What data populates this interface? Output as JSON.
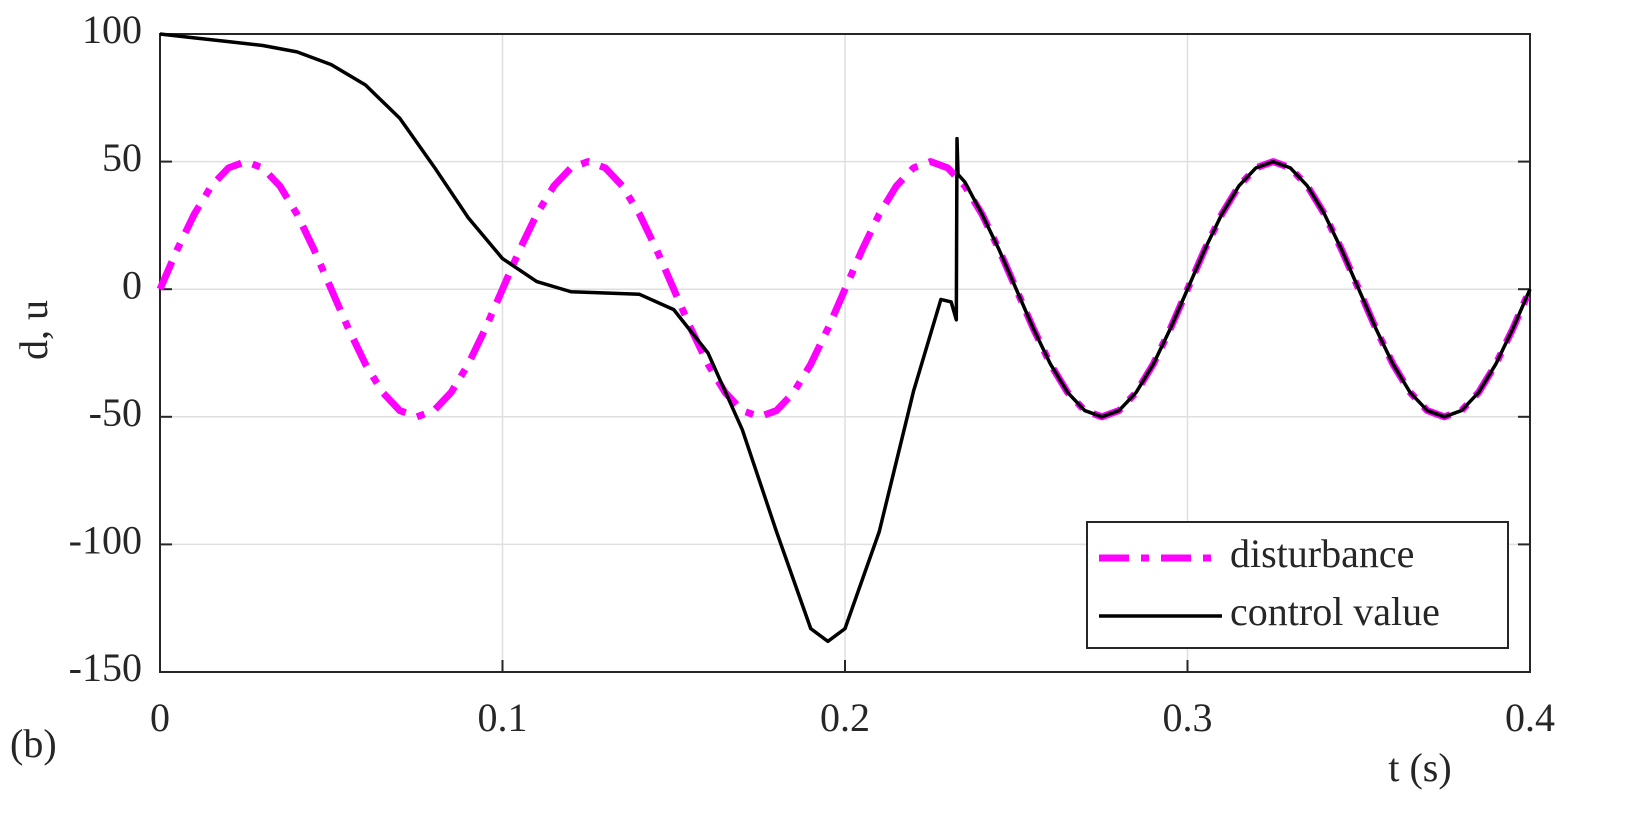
{
  "chart_data": {
    "type": "line",
    "panel_label": "(b)",
    "xlabel": "t (s)",
    "ylabel": "d, u",
    "xlim": [
      0,
      0.4
    ],
    "ylim": [
      -150,
      100
    ],
    "xticks": [
      0,
      0.1,
      0.2,
      0.3,
      0.4
    ],
    "yticks": [
      -150,
      -100,
      -50,
      0,
      50,
      100
    ],
    "grid": true,
    "legend": "lower right",
    "series": [
      {
        "name": "disturbance",
        "color": "#ff00ff",
        "dash": "dashdot",
        "x": [
          0,
          0.005,
          0.01,
          0.015,
          0.02,
          0.025,
          0.03,
          0.035,
          0.04,
          0.045,
          0.05,
          0.055,
          0.06,
          0.065,
          0.07,
          0.075,
          0.08,
          0.085,
          0.09,
          0.095,
          0.1,
          0.105,
          0.11,
          0.115,
          0.12,
          0.125,
          0.13,
          0.135,
          0.14,
          0.145,
          0.15,
          0.155,
          0.16,
          0.165,
          0.17,
          0.175,
          0.18,
          0.185,
          0.19,
          0.195,
          0.2,
          0.205,
          0.21,
          0.215,
          0.22,
          0.225,
          0.23,
          0.235,
          0.24,
          0.245,
          0.25,
          0.255,
          0.26,
          0.265,
          0.27,
          0.275,
          0.28,
          0.285,
          0.29,
          0.295,
          0.3,
          0.305,
          0.31,
          0.315,
          0.32,
          0.325,
          0.33,
          0.335,
          0.34,
          0.345,
          0.35,
          0.355,
          0.36,
          0.365,
          0.37,
          0.375,
          0.38,
          0.385,
          0.39,
          0.395,
          0.4
        ],
        "values": [
          0,
          15.45,
          29.39,
          40.45,
          47.55,
          50,
          47.55,
          40.45,
          29.39,
          15.45,
          0,
          -15.45,
          -29.39,
          -40.45,
          -47.55,
          -50,
          -47.55,
          -40.45,
          -29.39,
          -15.45,
          0,
          15.45,
          29.39,
          40.45,
          47.55,
          50,
          47.55,
          40.45,
          29.39,
          15.45,
          0,
          -15.45,
          -29.39,
          -40.45,
          -47.55,
          -50,
          -47.55,
          -40.45,
          -29.39,
          -15.45,
          0,
          15.45,
          29.39,
          40.45,
          47.55,
          50,
          47.55,
          40.45,
          29.39,
          15.45,
          0,
          -15.45,
          -29.39,
          -40.45,
          -47.55,
          -50,
          -47.55,
          -40.45,
          -29.39,
          -15.45,
          0,
          15.45,
          29.39,
          40.45,
          47.55,
          50,
          47.55,
          40.45,
          29.39,
          15.45,
          0,
          -15.45,
          -29.39,
          -40.45,
          -47.55,
          -50,
          -47.55,
          -40.45,
          -29.39,
          -15.45,
          0
        ]
      },
      {
        "name": "control value",
        "color": "#000000",
        "dash": "solid",
        "x": [
          0,
          0.01,
          0.02,
          0.03,
          0.04,
          0.05,
          0.06,
          0.07,
          0.08,
          0.09,
          0.1,
          0.11,
          0.12,
          0.13,
          0.14,
          0.15,
          0.16,
          0.17,
          0.18,
          0.19,
          0.195,
          0.2,
          0.21,
          0.22,
          0.228,
          0.231,
          0.2325,
          0.2327,
          0.233,
          0.235,
          0.24,
          0.245,
          0.25,
          0.255,
          0.26,
          0.265,
          0.27,
          0.275,
          0.28,
          0.285,
          0.29,
          0.295,
          0.3,
          0.305,
          0.31,
          0.315,
          0.32,
          0.325,
          0.33,
          0.335,
          0.34,
          0.345,
          0.35,
          0.355,
          0.36,
          0.365,
          0.37,
          0.375,
          0.38,
          0.385,
          0.39,
          0.395,
          0.4
        ],
        "values": [
          100,
          98.5,
          97,
          95.5,
          93,
          88,
          80,
          67,
          48,
          28,
          12,
          3,
          -1,
          -1.5,
          -2,
          -8,
          -25,
          -55,
          -95,
          -133,
          -138,
          -133,
          -95,
          -40,
          -4,
          -5,
          -12,
          59,
          45,
          42,
          29.39,
          15.45,
          0,
          -15.45,
          -29.39,
          -40.45,
          -47.55,
          -50,
          -47.55,
          -40.45,
          -29.39,
          -15.45,
          0,
          15.45,
          29.39,
          40.45,
          47.55,
          50,
          47.55,
          40.45,
          29.39,
          15.45,
          0,
          -15.45,
          -29.39,
          -40.45,
          -47.55,
          -50,
          -47.55,
          -40.45,
          -29.39,
          -15.45,
          0
        ]
      }
    ]
  }
}
